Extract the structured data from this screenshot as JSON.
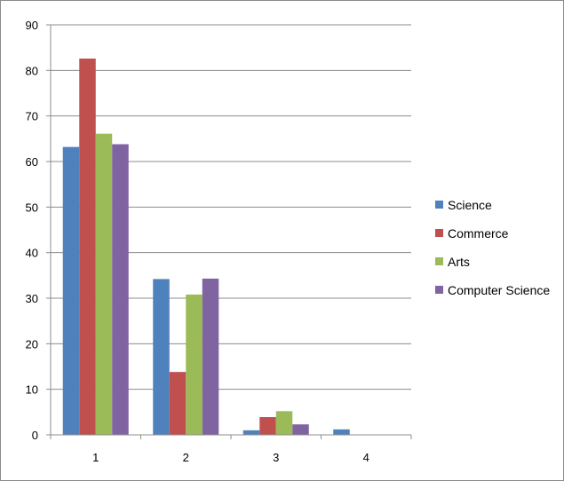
{
  "chart_data": {
    "type": "bar",
    "categories": [
      "1",
      "2",
      "3",
      "4"
    ],
    "series": [
      {
        "name": "Science",
        "color": "#4f81bd",
        "values": [
          63.2,
          34.2,
          1.0,
          1.2
        ]
      },
      {
        "name": "Commerce",
        "color": "#c0504d",
        "values": [
          82.6,
          13.8,
          3.9,
          0
        ]
      },
      {
        "name": "Arts",
        "color": "#9bbb59",
        "values": [
          66.1,
          30.8,
          5.2,
          0
        ]
      },
      {
        "name": "Computer Science",
        "color": "#8064a2",
        "values": [
          63.8,
          34.3,
          2.3,
          0
        ]
      }
    ],
    "ylim": [
      0,
      90
    ],
    "yticks": [
      "0",
      "10",
      "20",
      "30",
      "40",
      "50",
      "60",
      "70",
      "80",
      "90"
    ],
    "grid": true,
    "legend_position": "right"
  }
}
